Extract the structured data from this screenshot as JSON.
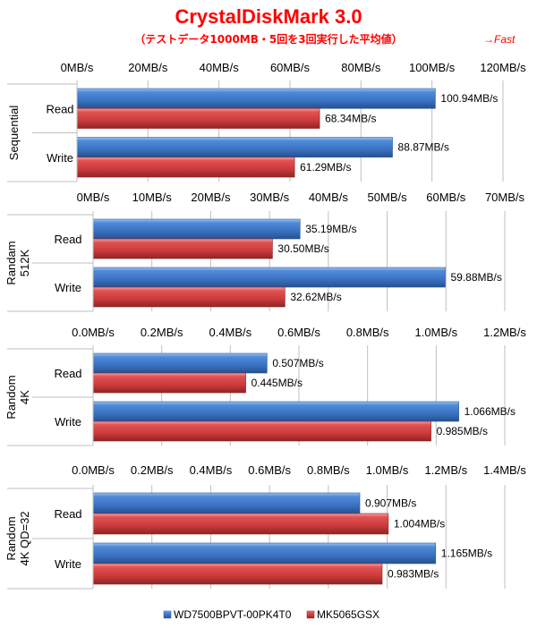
{
  "chart_data": {
    "type": "bar",
    "orientation": "horizontal",
    "title": "CrystalDiskMark 3.0",
    "subtitle": "（テストデータ1000MB・5回を3回実行した平均値）",
    "annotation": "→Fast",
    "legend": {
      "placement": "bottom",
      "entries": [
        {
          "name": "WD7500BPVT-00PK4T0",
          "color": "#3f78c8"
        },
        {
          "name": "MK5065GSX",
          "color": "#cc3a3a"
        }
      ]
    },
    "panels": [
      {
        "group_label": "Sequential",
        "xlim": [
          0,
          120
        ],
        "ticks": [
          0,
          20,
          40,
          60,
          80,
          100,
          120
        ],
        "tick_labels": [
          "0MB/s",
          "20MB/s",
          "40MB/s",
          "60MB/s",
          "80MB/s",
          "100MB/s",
          "120MB/s"
        ],
        "categories": [
          "Read",
          "Write"
        ],
        "series": [
          {
            "name": "WD7500BPVT-00PK4T0",
            "values": [
              100.94,
              88.87
            ],
            "labels": [
              "100.94MB/s",
              "88.87MB/s"
            ]
          },
          {
            "name": "MK5065GSX",
            "values": [
              68.34,
              61.29
            ],
            "labels": [
              "68.34MB/s",
              "61.29MB/s"
            ]
          }
        ]
      },
      {
        "group_label": [
          "Randam",
          "512K"
        ],
        "xlim": [
          0,
          70
        ],
        "ticks": [
          0,
          10,
          20,
          30,
          40,
          50,
          60,
          70
        ],
        "tick_labels": [
          "0MB/s",
          "10MB/s",
          "20MB/s",
          "30MB/s",
          "40MB/s",
          "50MB/s",
          "60MB/s",
          "70MB/s"
        ],
        "categories": [
          "Read",
          "Write"
        ],
        "series": [
          {
            "name": "WD7500BPVT-00PK4T0",
            "values": [
              35.19,
              59.88
            ],
            "labels": [
              "35.19MB/s",
              "59.88MB/s"
            ]
          },
          {
            "name": "MK5065GSX",
            "values": [
              30.5,
              32.62
            ],
            "labels": [
              "30.50MB/s",
              "32.62MB/s"
            ]
          }
        ]
      },
      {
        "group_label": [
          "Random",
          "4K"
        ],
        "xlim": [
          0,
          1.2
        ],
        "ticks": [
          0,
          0.2,
          0.4,
          0.6,
          0.8,
          1.0,
          1.2
        ],
        "tick_labels": [
          "0.0MB/s",
          "0.2MB/s",
          "0.4MB/s",
          "0.6MB/s",
          "0.8MB/s",
          "1.0MB/s",
          "1.2MB/s"
        ],
        "categories": [
          "Read",
          "Write"
        ],
        "series": [
          {
            "name": "WD7500BPVT-00PK4T0",
            "values": [
              0.507,
              1.066
            ],
            "labels": [
              "0.507MB/s",
              "1.066MB/s"
            ]
          },
          {
            "name": "MK5065GSX",
            "values": [
              0.445,
              0.985
            ],
            "labels": [
              "0.445MB/s",
              "0.985MB/s"
            ]
          }
        ]
      },
      {
        "group_label": [
          "Random",
          "4K QD=32"
        ],
        "xlim": [
          0,
          1.4
        ],
        "ticks": [
          0,
          0.2,
          0.4,
          0.6,
          0.8,
          1.0,
          1.2,
          1.4
        ],
        "tick_labels": [
          "0.0MB/s",
          "0.2MB/s",
          "0.4MB/s",
          "0.6MB/s",
          "0.8MB/s",
          "1.0MB/s",
          "1.2MB/s",
          "1.4MB/s"
        ],
        "categories": [
          "Read",
          "Write"
        ],
        "series": [
          {
            "name": "WD7500BPVT-00PK4T0",
            "values": [
              0.907,
              1.165
            ],
            "labels": [
              "0.907MB/s",
              "1.165MB/s"
            ]
          },
          {
            "name": "MK5065GSX",
            "values": [
              1.004,
              0.983
            ],
            "labels": [
              "1.004MB/s",
              "0.983MB/s"
            ]
          }
        ]
      }
    ],
    "grid": true
  }
}
